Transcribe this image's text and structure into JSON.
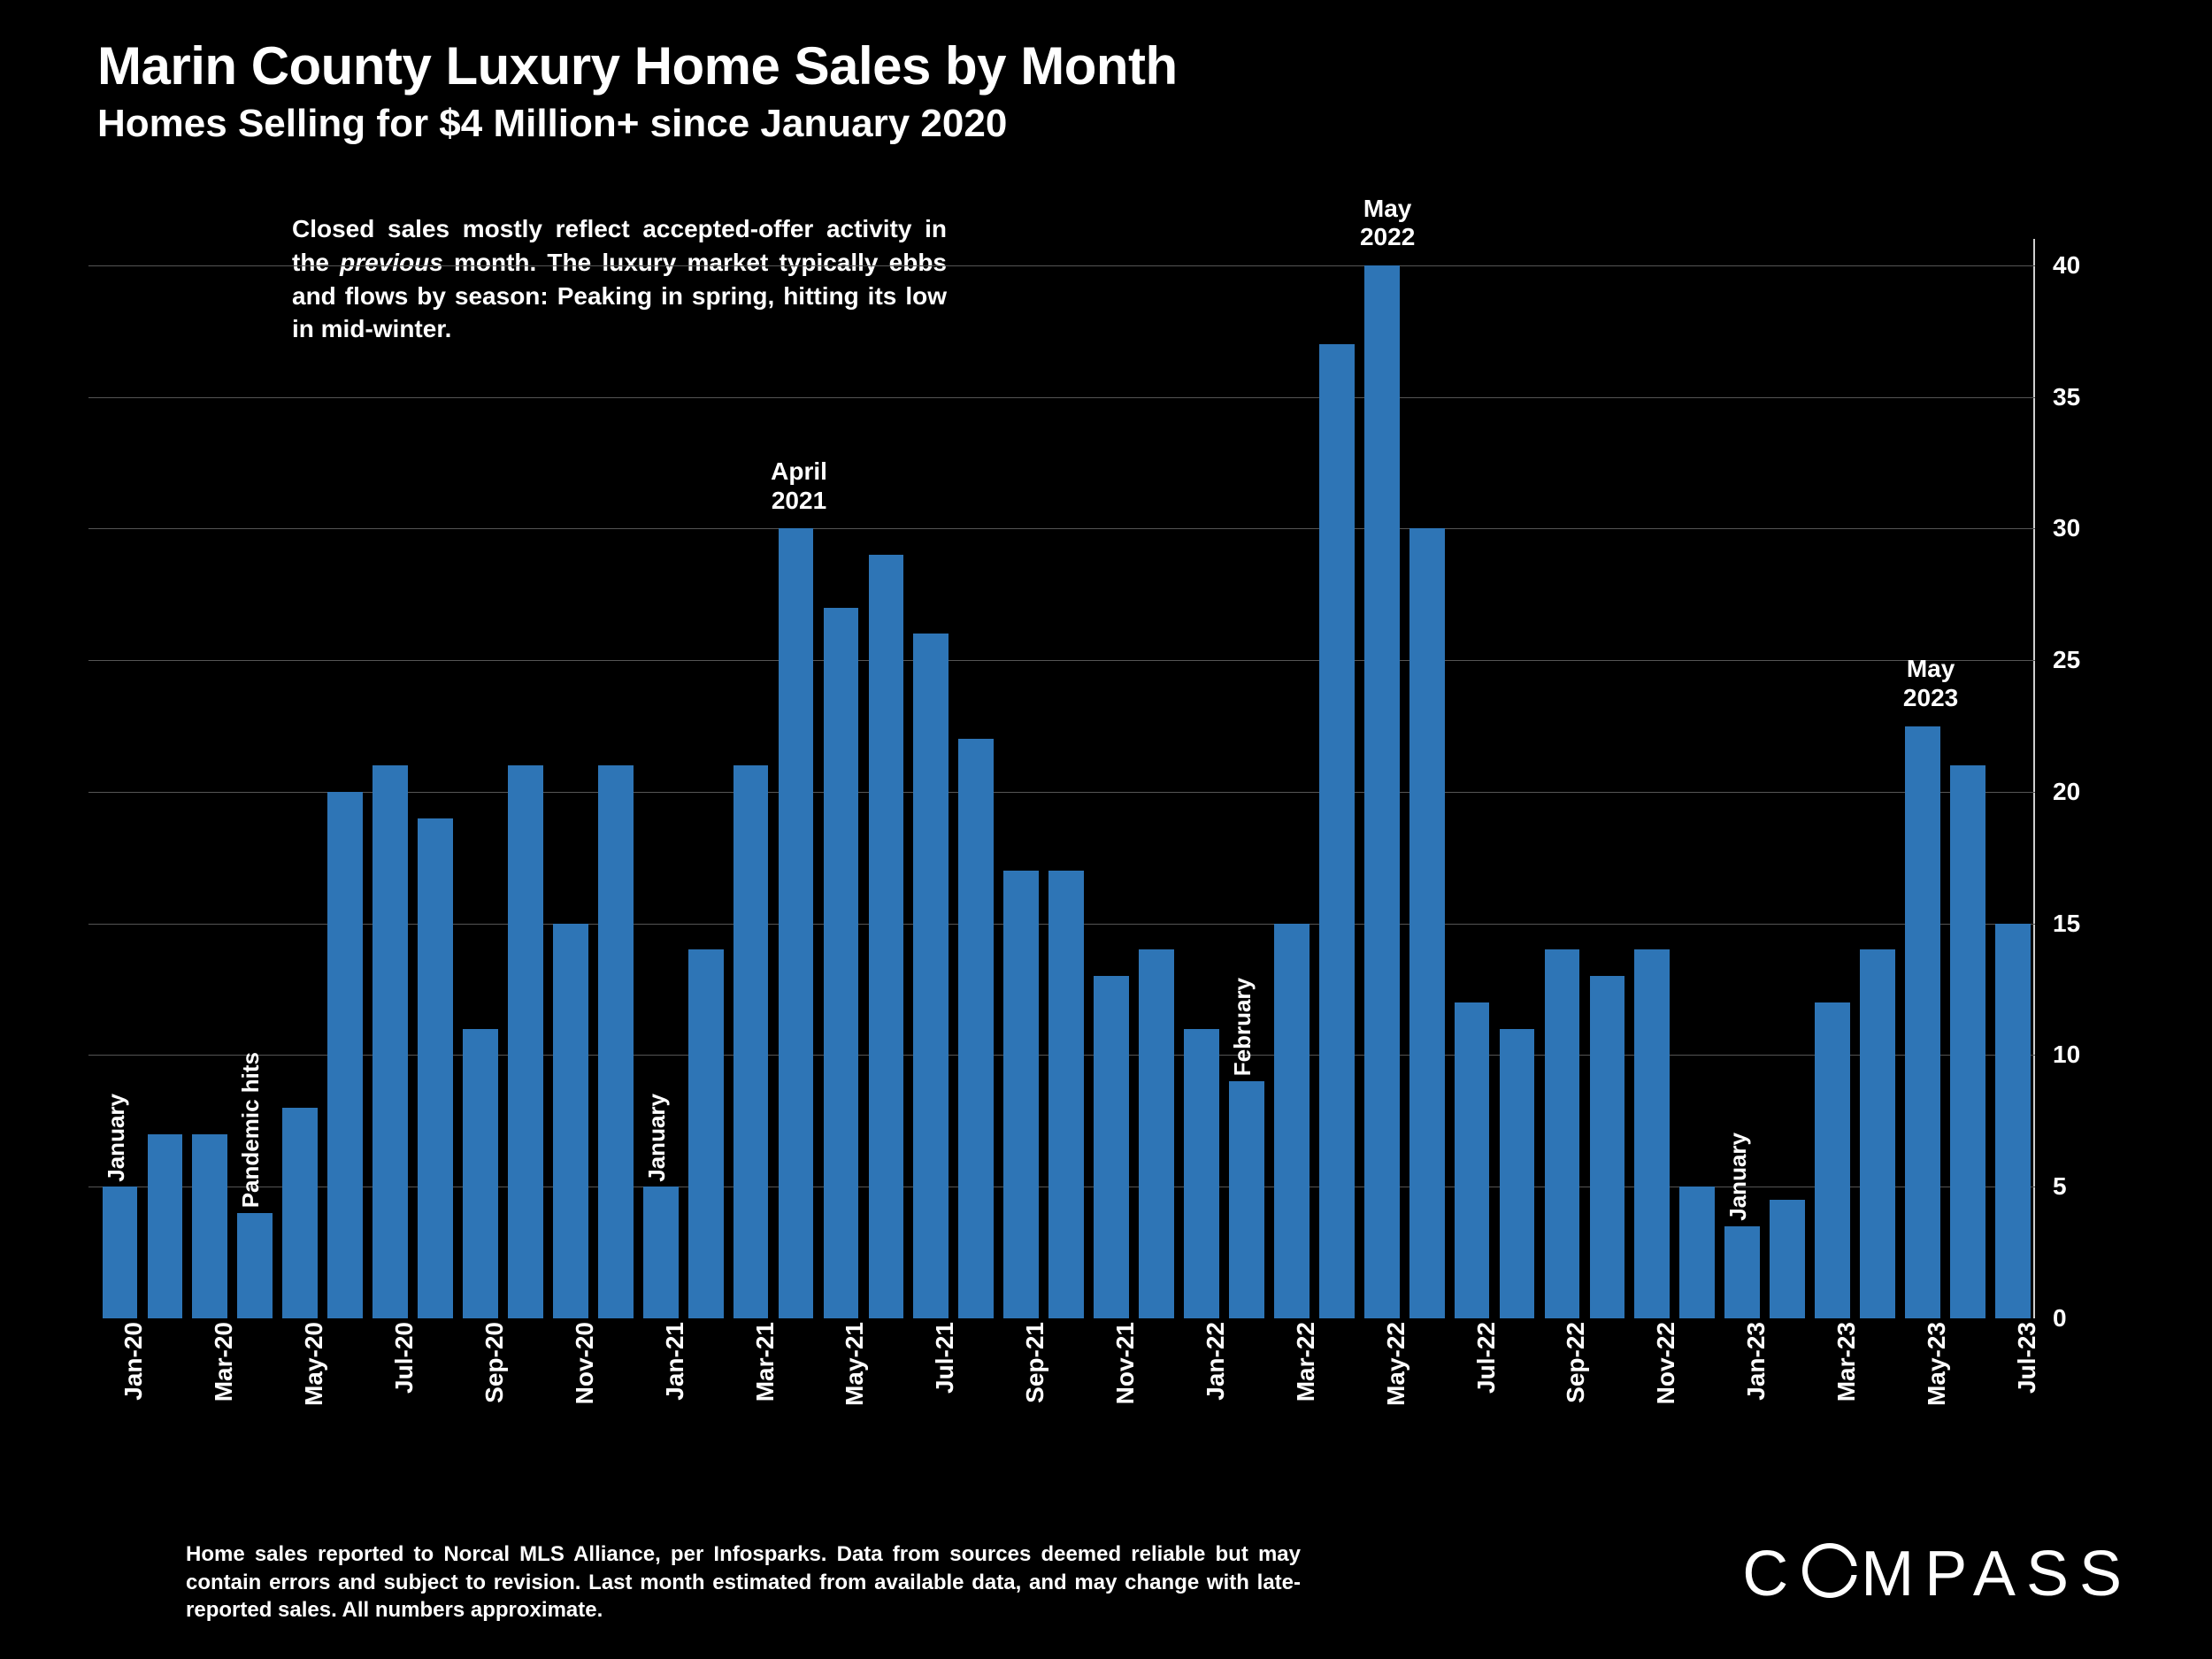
{
  "title": "Marin County Luxury Home Sales by Month",
  "subtitle": "Homes Selling for $4 Million+ since January 2020",
  "description_html": "Closed sales mostly reflect accepted-offer activity in the <span class=\"italic\">previous</span> month. The luxury market typically ebbs and flows by season: Peaking in spring, hitting its low in mid-winter.",
  "footnote": "Home sales reported to Norcal MLS Alliance, per Infosparks. Data from sources deemed reliable but may contain errors and subject to revision.  Last month estimated from available data, and may change with late-reported sales. All numbers approximate.",
  "logo_text_before": "C",
  "logo_text_after": "MPASS",
  "chart": {
    "type": "bar",
    "background_color": "#000000",
    "bar_color": "#2e75b6",
    "grid_color": "#555555",
    "axis_color": "#d0d0d0",
    "text_color": "#ffffff",
    "title_fontsize_pt": 45,
    "subtitle_fontsize_pt": 33,
    "label_fontsize_pt": 21,
    "tick_fontsize_pt": 21,
    "footnote_fontsize_pt": 18,
    "bar_width_ratio": 0.78,
    "y": {
      "min": 0,
      "max": 41,
      "ticks": [
        0,
        5,
        10,
        15,
        20,
        25,
        30,
        35,
        40
      ]
    },
    "x_labels_every_other": true,
    "months": [
      {
        "label": "Jan-20",
        "value": 5,
        "annot": "January"
      },
      {
        "label": "Feb-20",
        "value": 7
      },
      {
        "label": "Mar-20",
        "value": 7
      },
      {
        "label": "Apr-20",
        "value": 4,
        "annot": "Pandemic hits"
      },
      {
        "label": "May-20",
        "value": 8
      },
      {
        "label": "Jun-20",
        "value": 20
      },
      {
        "label": "Jul-20",
        "value": 21
      },
      {
        "label": "Aug-20",
        "value": 19
      },
      {
        "label": "Sep-20",
        "value": 11
      },
      {
        "label": "Oct-20",
        "value": 21
      },
      {
        "label": "Nov-20",
        "value": 15
      },
      {
        "label": "Dec-20",
        "value": 21
      },
      {
        "label": "Jan-21",
        "value": 5,
        "annot": "January"
      },
      {
        "label": "Feb-21",
        "value": 14
      },
      {
        "label": "Mar-21",
        "value": 21
      },
      {
        "label": "Apr-21",
        "value": 30,
        "top_annot": "April\n2021"
      },
      {
        "label": "May-21",
        "value": 27
      },
      {
        "label": "Jun-21",
        "value": 29
      },
      {
        "label": "Jul-21",
        "value": 26
      },
      {
        "label": "Aug-21",
        "value": 22
      },
      {
        "label": "Sep-21",
        "value": 17
      },
      {
        "label": "Oct-21",
        "value": 17
      },
      {
        "label": "Nov-21",
        "value": 13
      },
      {
        "label": "Dec-21",
        "value": 14
      },
      {
        "label": "Jan-22",
        "value": 11
      },
      {
        "label": "Feb-22",
        "value": 9,
        "annot": "February"
      },
      {
        "label": "Mar-22",
        "value": 15
      },
      {
        "label": "Apr-22",
        "value": 37
      },
      {
        "label": "May-22",
        "value": 40,
        "top_annot": "May\n2022"
      },
      {
        "label": "Jun-22",
        "value": 30
      },
      {
        "label": "Jul-22",
        "value": 12
      },
      {
        "label": "Aug-22",
        "value": 11
      },
      {
        "label": "Sep-22",
        "value": 14
      },
      {
        "label": "Oct-22",
        "value": 13
      },
      {
        "label": "Nov-22",
        "value": 14
      },
      {
        "label": "Dec-22",
        "value": 5
      },
      {
        "label": "Jan-23",
        "value": 3.5,
        "annot": "January"
      },
      {
        "label": "Feb-23",
        "value": 4.5
      },
      {
        "label": "Mar-23",
        "value": 12
      },
      {
        "label": "Apr-23",
        "value": 14
      },
      {
        "label": "May-23",
        "value": 22.5,
        "top_annot": "May\n2023"
      },
      {
        "label": "Jun-23",
        "value": 21
      },
      {
        "label": "Jul-23",
        "value": 15
      }
    ]
  }
}
